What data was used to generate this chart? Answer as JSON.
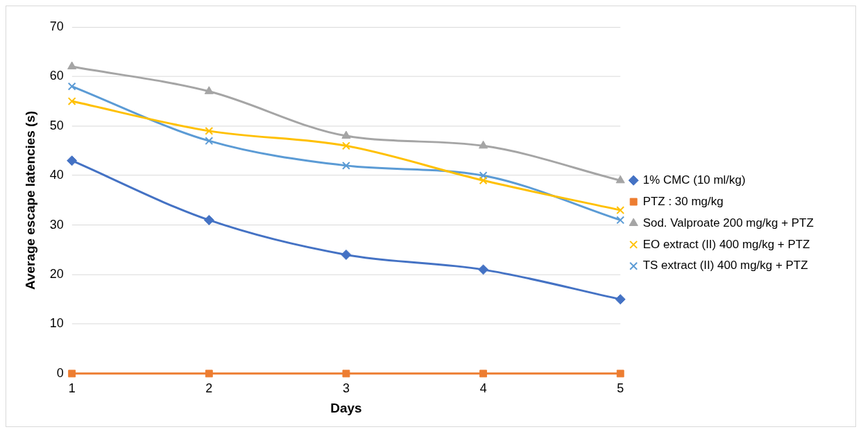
{
  "chart_data": {
    "type": "line",
    "xlabel": "Days",
    "ylabel": "Average escape latencies (s)",
    "categories": [
      "1",
      "2",
      "3",
      "4",
      "5"
    ],
    "series": [
      {
        "name": "1% CMC (10 ml/kg)",
        "color": "#4472c4",
        "marker": "diamond",
        "values": [
          43,
          31,
          24,
          21,
          15
        ]
      },
      {
        "name": "PTZ : 30 mg/kg",
        "color": "#ed7d31",
        "marker": "square",
        "values": [
          0,
          0,
          0,
          0,
          0
        ]
      },
      {
        "name": "Sod. Valproate 200 mg/kg + PTZ",
        "color": "#a5a5a5",
        "marker": "triangle",
        "values": [
          62,
          57,
          48,
          46,
          39
        ]
      },
      {
        "name": "EO extract (II) 400 mg/kg + PTZ",
        "color": "#ffc000",
        "marker": "cross",
        "values": [
          55,
          49,
          46,
          39,
          33
        ]
      },
      {
        "name": "TS extract (II) 400 mg/kg + PTZ",
        "color": "#5b9bd5",
        "marker": "cross",
        "values": [
          58,
          47,
          42,
          40,
          31
        ]
      }
    ],
    "ylim": [
      0,
      70
    ],
    "yticks": [
      0,
      10,
      20,
      30,
      40,
      50,
      60,
      70
    ],
    "grid": "y",
    "legend": "right"
  }
}
